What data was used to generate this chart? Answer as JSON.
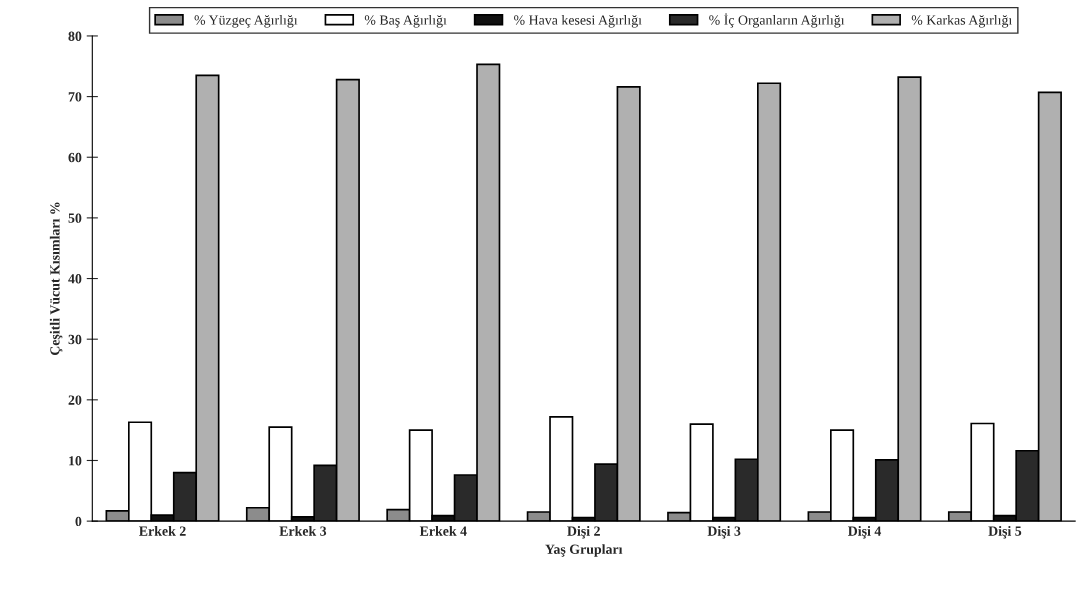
{
  "chart_data": {
    "type": "bar",
    "xlabel": "Yaş Grupları",
    "ylabel": "Çeşitli Vücut Kısımları %",
    "categories": [
      "Erkek 2",
      "Erkek 3",
      "Erkek 4",
      "Dişi 2",
      "Dişi 3",
      "Dişi 4",
      "Dişi 5"
    ],
    "series": [
      {
        "name": "% Yüzgeç Ağırlığı",
        "color": "#8c8c8c",
        "values": [
          1.7,
          2.2,
          1.9,
          1.5,
          1.4,
          1.5,
          1.5
        ]
      },
      {
        "name": "% Baş Ağırlığı",
        "color": "#ffffff",
        "values": [
          16.3,
          15.5,
          15.0,
          17.2,
          16.0,
          15.0,
          16.1
        ]
      },
      {
        "name": "% Hava kesesi Ağırlığı",
        "color": "#111111",
        "values": [
          1.0,
          0.7,
          0.9,
          0.6,
          0.6,
          0.6,
          0.9
        ]
      },
      {
        "name": "% İç Organların Ağırlığı",
        "color": "#2a2a2a",
        "values": [
          8.0,
          9.2,
          7.6,
          9.4,
          10.2,
          10.1,
          11.6
        ]
      },
      {
        "name": "% Karkas Ağırlığı",
        "color": "#b0b0b0",
        "values": [
          73.5,
          72.8,
          75.3,
          71.6,
          72.2,
          73.2,
          70.7
        ]
      }
    ],
    "ylim": [
      0,
      80
    ],
    "yticks": [
      0,
      10,
      20,
      30,
      40,
      50,
      60,
      70,
      80
    ],
    "grid": false,
    "legend": "top"
  }
}
